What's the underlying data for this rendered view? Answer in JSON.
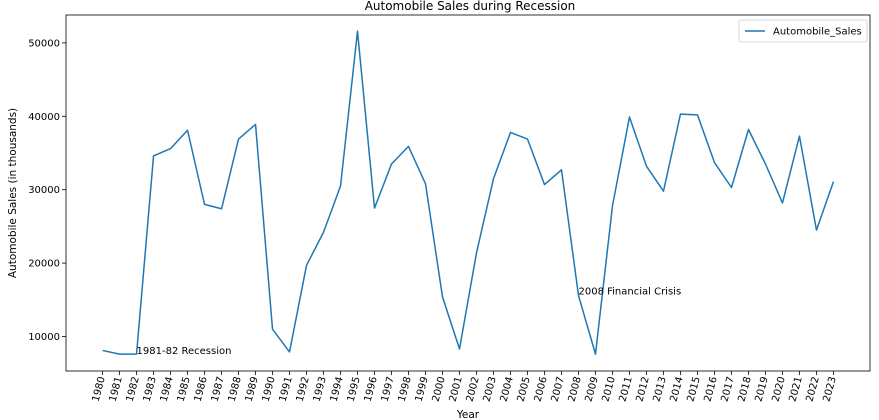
{
  "chart_data": {
    "type": "line",
    "title": "Automobile Sales during Recession",
    "xlabel": "Year",
    "ylabel": "Automobile Sales (in thousands)",
    "x": [
      1980,
      1981,
      1982,
      1983,
      1984,
      1985,
      1986,
      1987,
      1988,
      1989,
      1990,
      1991,
      1992,
      1993,
      1994,
      1995,
      1996,
      1997,
      1998,
      1999,
      2000,
      2001,
      2002,
      2003,
      2004,
      2005,
      2006,
      2007,
      2008,
      2009,
      2010,
      2011,
      2012,
      2013,
      2014,
      2015,
      2016,
      2017,
      2018,
      2019,
      2020,
      2021,
      2022,
      2023
    ],
    "x_tick_labels": [
      "1980",
      "1981",
      "1982",
      "1983",
      "1984",
      "1985",
      "1986",
      "1987",
      "1988",
      "1989",
      "1990",
      "1991",
      "1992",
      "1993",
      "1994",
      "1995",
      "1996",
      "1997",
      "1998",
      "1999",
      "2000",
      "2001",
      "2002",
      "2003",
      "2004",
      "2005",
      "2006",
      "2007",
      "2008",
      "2009",
      "2010",
      "2011",
      "2012",
      "2013",
      "2014",
      "2015",
      "2016",
      "2017",
      "2018",
      "2019",
      "2020",
      "2021",
      "2022",
      "2023"
    ],
    "xlim": [
      1977.85,
      2025.15
    ],
    "ylim": [
      5300,
      53800
    ],
    "y_ticks": [
      10000,
      20000,
      30000,
      40000,
      50000
    ],
    "y_tick_labels": [
      "10000",
      "20000",
      "30000",
      "40000",
      "50000"
    ],
    "series": [
      {
        "name": "Automobile_Sales",
        "color": "#1f77b4",
        "values": [
          8100,
          7600,
          7600,
          34600,
          35600,
          38100,
          28000,
          27400,
          36900,
          38900,
          11000,
          7900,
          19700,
          24200,
          30500,
          51600,
          27500,
          33500,
          35900,
          30800,
          15400,
          8300,
          21400,
          31500,
          37800,
          36900,
          30700,
          32700,
          15600,
          7600,
          27800,
          39900,
          33200,
          29800,
          40300,
          40200,
          33700,
          30300,
          38200,
          33500,
          28200,
          37300,
          24500,
          31100
        ]
      }
    ],
    "annotations": [
      {
        "text": "1981-82 Recession",
        "x": 1982,
        "y": 8100
      },
      {
        "text": "2008 Financial Crisis",
        "x": 2008,
        "y": 16200
      }
    ],
    "grid": false,
    "legend_position": "top-right"
  }
}
